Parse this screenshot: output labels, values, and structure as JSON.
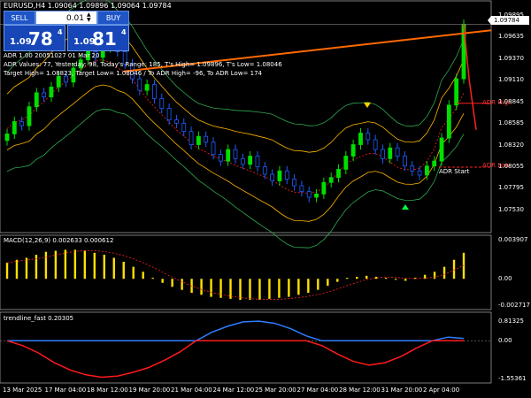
{
  "window": {
    "title": "EURUSD,H4  1.09064 1.09896 1.09064 1.09784"
  },
  "trade_panel": {
    "sell_label": "SELL",
    "buy_label": "BUY",
    "lot_value": "0.01",
    "sell_price_small": "1.09",
    "sell_price_big": "78",
    "sell_price_sup": "4",
    "buy_price_small": "1.09",
    "buy_price_big": "81",
    "buy_price_sup": "4"
  },
  "adr_info": {
    "line1": "ADR 1.00 20051027 01 Mar 20",
    "line2": "ADR Values: 77, Yesterday: 98, Today's Range: 185, T's High= 1.09896, T's Low= 1.08046",
    "line3": "Target High= 1.08823, Target Low= 1.08046 / To ADR High= -96, To ADR Low= 174",
    "adr_high_label": "ADR High",
    "adr_low_label": "ADR Low",
    "adr_start_label": "ADR Start"
  },
  "price_axis": {
    "labels": [
      "1.09895",
      "1.09635",
      "1.09370",
      "1.09110",
      "1.08845",
      "1.08585",
      "1.08320",
      "1.08055",
      "1.07795",
      "1.07530"
    ],
    "current_price": "1.09784"
  },
  "macd": {
    "title": "MACD(12,26,9) 0.002633 0.000612",
    "axis_labels": [
      "0.003907",
      "0.00",
      "-0.002717"
    ]
  },
  "trendline": {
    "title": "trendline_fast 0.20305",
    "axis_labels": [
      "0.81325",
      "0.00",
      "-1.55361"
    ]
  },
  "time_axis": {
    "labels": [
      "13 Mar 2025",
      "17 Mar 04:00",
      "18 Mar 12:00",
      "19 Mar 20:00",
      "21 Mar 04:00",
      "24 Mar 12:00",
      "25 Mar 20:00",
      "27 Mar 04:00",
      "28 Mar 12:00",
      "31 Mar 20:00",
      "2 Apr 04:00"
    ]
  },
  "colors": {
    "bull": "#00e000",
    "bear": "#1e5cff",
    "band_outer": "#2fa84f",
    "band_inner": "#ffb400",
    "ma_red": "#ff2020",
    "ma_orange": "#ff6a00",
    "macd_hist": "#ffe000",
    "trend_blue": "#2f7dff",
    "trend_red": "#ff1a1a"
  },
  "chart_data": {
    "type": "candlestick",
    "symbol": "EURUSD",
    "timeframe": "H4",
    "closes": [
      1.0845,
      1.086,
      1.0855,
      1.0878,
      1.0895,
      1.089,
      1.0902,
      1.0915,
      1.0908,
      1.0925,
      1.0935,
      1.0945,
      1.0938,
      1.095,
      1.0958,
      1.0945,
      1.093,
      1.0912,
      1.0898,
      1.0905,
      1.0888,
      1.0876,
      1.0862,
      1.0858,
      1.0848,
      1.0832,
      1.0842,
      1.0835,
      1.082,
      1.0812,
      1.0826,
      1.0815,
      1.0808,
      1.0818,
      1.0805,
      1.0796,
      1.0788,
      1.08,
      1.079,
      1.0782,
      1.0775,
      1.0768,
      1.0772,
      1.0786,
      1.0792,
      1.0802,
      1.0818,
      1.0832,
      1.0846,
      1.0838,
      1.0826,
      1.0815,
      1.0828,
      1.0818,
      1.0806,
      1.08,
      1.0795,
      1.0806,
      1.0812,
      1.084,
      1.088,
      1.0912,
      1.0978
    ],
    "macd_hist": [
      0.0016,
      0.0019,
      0.0021,
      0.0024,
      0.0027,
      0.0028,
      0.0029,
      0.0029,
      0.0028,
      0.0026,
      0.0024,
      0.0021,
      0.0017,
      0.0012,
      0.0007,
      0.0001,
      -0.0004,
      -0.0008,
      -0.0011,
      -0.0014,
      -0.0016,
      -0.0018,
      -0.0019,
      -0.002,
      -0.0021,
      -0.0021,
      -0.0021,
      -0.002,
      -0.0019,
      -0.0018,
      -0.0016,
      -0.0014,
      -0.0011,
      -0.0007,
      -0.0003,
      0.0001,
      0.0002,
      0.0003,
      0.0002,
      0.0001,
      -0.0001,
      -0.0002,
      0.0001,
      0.0004,
      0.0007,
      0.0012,
      0.0019,
      0.0026
    ],
    "trend_fast": [
      0.0,
      -0.2,
      -0.5,
      -0.9,
      -1.2,
      -1.4,
      -1.5,
      -1.45,
      -1.3,
      -1.1,
      -0.8,
      -0.45,
      0.0,
      0.35,
      0.6,
      0.78,
      0.81,
      0.72,
      0.5,
      0.2,
      -0.2,
      -0.55,
      -0.85,
      -1.0,
      -0.9,
      -0.65,
      -0.3,
      0.0,
      0.15,
      0.1
    ]
  }
}
